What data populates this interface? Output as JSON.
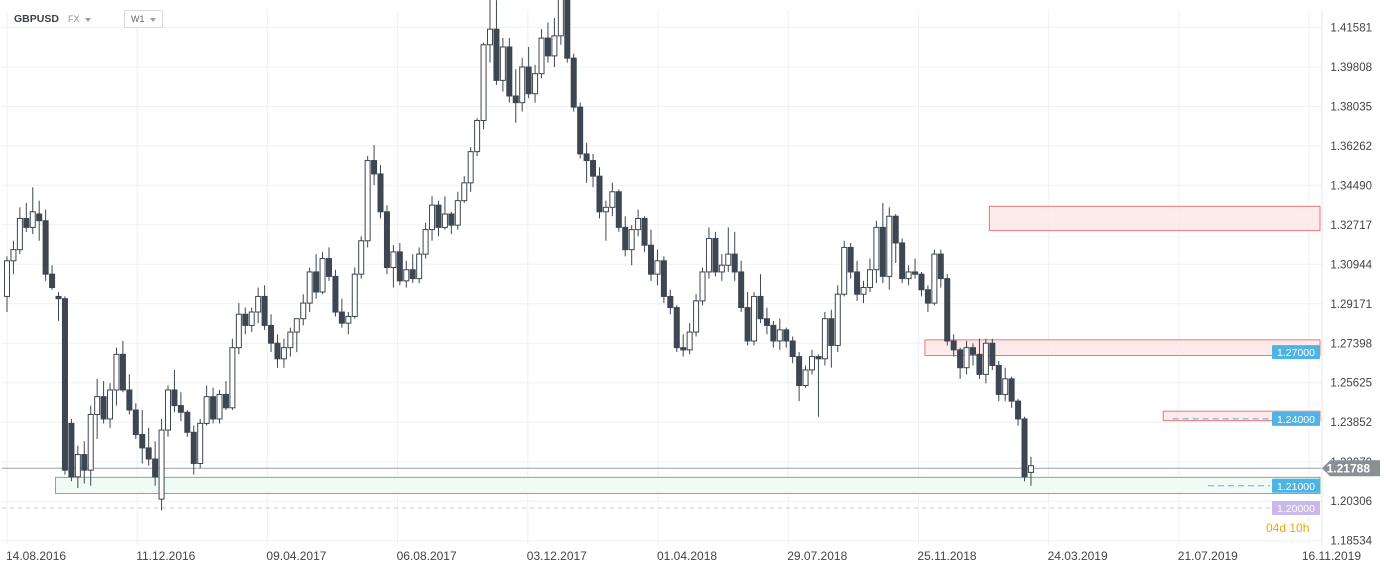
{
  "header": {
    "symbol": "GBPUSD",
    "market": "FX",
    "timeframe": "W1"
  },
  "colors": {
    "bear": "#3d4651",
    "bull": "#ffffff",
    "zone_red_fill": "#fde6e6",
    "zone_red_stroke": "#e25b5b",
    "zone_green_fill": "#eefaf4",
    "zone_green_stroke": "#3bb07a",
    "level_tag": "#4fb3e3",
    "current_tag": "#8a8f96",
    "purple_tag": "#c9b8ec",
    "countdown": "#f0a500"
  },
  "chart_data": {
    "type": "candlestick",
    "timeframe": "W1",
    "x_ticks": [
      "14.08.2016",
      "11.12.2016",
      "09.04.2017",
      "06.08.2017",
      "03.12.2017",
      "01.04.2018",
      "29.07.2018",
      "25.11.2018",
      "24.03.2019",
      "21.07.2019",
      "16.11.2019"
    ],
    "y_ticks": [
      1.41581,
      1.39808,
      1.38035,
      1.36262,
      1.3449,
      1.32717,
      1.30944,
      1.29171,
      1.27398,
      1.25625,
      1.23852,
      1.2207,
      1.20306,
      1.18534
    ],
    "ylim": [
      1.1834,
      1.4236
    ],
    "current_price": 1.21788,
    "current_price_label": "1.21788",
    "countdown_label": "04d 10h",
    "levels": [
      {
        "value": 1.27,
        "label": "1.27000"
      },
      {
        "value": 1.24,
        "label": "1.24000"
      },
      {
        "value": 1.21,
        "label": "1.21000"
      },
      {
        "value": 1.2,
        "label": "1.20000"
      }
    ],
    "zones": [
      {
        "from": 1.3245,
        "to": 1.3355,
        "kind": "resistance",
        "start_candle": 153
      },
      {
        "from": 1.2685,
        "to": 1.2755,
        "kind": "resistance",
        "start_candle": 143
      },
      {
        "from": 1.2392,
        "to": 1.2435,
        "kind": "resistance",
        "start_candle": 180
      },
      {
        "from": 1.2065,
        "to": 1.2138,
        "kind": "support",
        "start_candle": 8
      }
    ],
    "ohlc": [
      [
        1.295,
        1.313,
        1.288,
        1.311
      ],
      [
        1.311,
        1.32,
        1.305,
        1.316
      ],
      [
        1.316,
        1.335,
        1.314,
        1.33
      ],
      [
        1.33,
        1.337,
        1.324,
        1.326
      ],
      [
        1.326,
        1.344,
        1.323,
        1.333
      ],
      [
        1.332,
        1.338,
        1.32,
        1.329
      ],
      [
        1.329,
        1.334,
        1.302,
        1.305
      ],
      [
        1.305,
        1.309,
        1.298,
        1.299
      ],
      [
        1.295,
        1.297,
        1.284,
        1.294
      ],
      [
        1.294,
        1.295,
        1.215,
        1.217
      ],
      [
        1.238,
        1.24,
        1.212,
        1.214
      ],
      [
        1.214,
        1.228,
        1.209,
        1.224
      ],
      [
        1.224,
        1.23,
        1.211,
        1.217
      ],
      [
        1.217,
        1.246,
        1.21,
        1.242
      ],
      [
        1.242,
        1.258,
        1.231,
        1.25
      ],
      [
        1.25,
        1.257,
        1.238,
        1.24
      ],
      [
        1.24,
        1.256,
        1.236,
        1.253
      ],
      [
        1.253,
        1.272,
        1.246,
        1.269
      ],
      [
        1.269,
        1.275,
        1.252,
        1.253
      ],
      [
        1.253,
        1.26,
        1.242,
        1.244
      ],
      [
        1.244,
        1.247,
        1.231,
        1.233
      ],
      [
        1.233,
        1.244,
        1.22,
        1.227
      ],
      [
        1.227,
        1.236,
        1.219,
        1.222
      ],
      [
        1.222,
        1.23,
        1.21,
        1.214
      ],
      [
        1.204,
        1.24,
        1.199,
        1.235
      ],
      [
        1.235,
        1.255,
        1.232,
        1.253
      ],
      [
        1.253,
        1.262,
        1.243,
        1.246
      ],
      [
        1.246,
        1.252,
        1.239,
        1.243
      ],
      [
        1.243,
        1.244,
        1.232,
        1.234
      ],
      [
        1.234,
        1.237,
        1.215,
        1.22
      ],
      [
        1.22,
        1.24,
        1.218,
        1.238
      ],
      [
        1.238,
        1.255,
        1.237,
        1.25
      ],
      [
        1.25,
        1.254,
        1.238,
        1.24
      ],
      [
        1.24,
        1.253,
        1.238,
        1.251
      ],
      [
        1.251,
        1.257,
        1.244,
        1.245
      ],
      [
        1.245,
        1.276,
        1.244,
        1.272
      ],
      [
        1.272,
        1.292,
        1.269,
        1.287
      ],
      [
        1.287,
        1.29,
        1.278,
        1.282
      ],
      [
        1.282,
        1.29,
        1.279,
        1.288
      ],
      [
        1.288,
        1.299,
        1.283,
        1.295
      ],
      [
        1.295,
        1.3,
        1.28,
        1.282
      ],
      [
        1.282,
        1.287,
        1.27,
        1.274
      ],
      [
        1.274,
        1.278,
        1.263,
        1.267
      ],
      [
        1.267,
        1.276,
        1.263,
        1.272
      ],
      [
        1.272,
        1.281,
        1.268,
        1.279
      ],
      [
        1.279,
        1.284,
        1.27,
        1.285
      ],
      [
        1.285,
        1.296,
        1.282,
        1.292
      ],
      [
        1.292,
        1.308,
        1.288,
        1.306
      ],
      [
        1.306,
        1.314,
        1.294,
        1.297
      ],
      [
        1.297,
        1.315,
        1.296,
        1.312
      ],
      [
        1.312,
        1.317,
        1.302,
        1.304
      ],
      [
        1.304,
        1.307,
        1.286,
        1.288
      ],
      [
        1.288,
        1.294,
        1.281,
        1.283
      ],
      [
        1.283,
        1.288,
        1.278,
        1.286
      ],
      [
        1.286,
        1.308,
        1.285,
        1.305
      ],
      [
        1.305,
        1.322,
        1.303,
        1.32
      ],
      [
        1.32,
        1.358,
        1.317,
        1.356
      ],
      [
        1.356,
        1.363,
        1.345,
        1.35
      ],
      [
        1.35,
        1.354,
        1.33,
        1.333
      ],
      [
        1.333,
        1.336,
        1.305,
        1.308
      ],
      [
        1.308,
        1.318,
        1.299,
        1.315
      ],
      [
        1.315,
        1.319,
        1.3,
        1.302
      ],
      [
        1.302,
        1.311,
        1.299,
        1.307
      ],
      [
        1.307,
        1.314,
        1.301,
        1.303
      ],
      [
        1.303,
        1.317,
        1.301,
        1.314
      ],
      [
        1.314,
        1.328,
        1.312,
        1.325
      ],
      [
        1.325,
        1.34,
        1.32,
        1.336
      ],
      [
        1.336,
        1.338,
        1.322,
        1.326
      ],
      [
        1.326,
        1.34,
        1.325,
        1.332
      ],
      [
        1.332,
        1.333,
        1.323,
        1.327
      ],
      [
        1.327,
        1.342,
        1.325,
        1.338
      ],
      [
        1.338,
        1.349,
        1.337,
        1.346
      ],
      [
        1.346,
        1.362,
        1.342,
        1.36
      ],
      [
        1.36,
        1.375,
        1.358,
        1.374
      ],
      [
        1.374,
        1.409,
        1.37,
        1.408
      ],
      [
        1.408,
        1.432,
        1.4,
        1.415
      ],
      [
        1.415,
        1.428,
        1.39,
        1.392
      ],
      [
        1.392,
        1.411,
        1.387,
        1.407
      ],
      [
        1.407,
        1.411,
        1.382,
        1.385
      ],
      [
        1.385,
        1.397,
        1.373,
        1.382
      ],
      [
        1.382,
        1.402,
        1.378,
        1.398
      ],
      [
        1.398,
        1.407,
        1.384,
        1.386
      ],
      [
        1.386,
        1.399,
        1.382,
        1.395
      ],
      [
        1.395,
        1.415,
        1.393,
        1.411
      ],
      [
        1.411,
        1.418,
        1.4,
        1.403
      ],
      [
        1.403,
        1.42,
        1.398,
        1.412
      ],
      [
        1.412,
        1.433,
        1.408,
        1.429
      ],
      [
        1.429,
        1.431,
        1.4,
        1.402
      ],
      [
        1.402,
        1.404,
        1.378,
        1.38
      ],
      [
        1.38,
        1.382,
        1.357,
        1.359
      ],
      [
        1.359,
        1.364,
        1.346,
        1.356
      ],
      [
        1.356,
        1.359,
        1.344,
        1.349
      ],
      [
        1.349,
        1.353,
        1.33,
        1.333
      ],
      [
        1.333,
        1.338,
        1.32,
        1.335
      ],
      [
        1.335,
        1.346,
        1.331,
        1.342
      ],
      [
        1.342,
        1.343,
        1.324,
        1.326
      ],
      [
        1.326,
        1.331,
        1.313,
        1.316
      ],
      [
        1.316,
        1.327,
        1.309,
        1.325
      ],
      [
        1.325,
        1.334,
        1.322,
        1.33
      ],
      [
        1.33,
        1.331,
        1.315,
        1.318
      ],
      [
        1.318,
        1.325,
        1.302,
        1.305
      ],
      [
        1.305,
        1.316,
        1.3,
        1.311
      ],
      [
        1.311,
        1.313,
        1.292,
        1.295
      ],
      [
        1.295,
        1.298,
        1.287,
        1.29
      ],
      [
        1.29,
        1.291,
        1.27,
        1.272
      ],
      [
        1.272,
        1.278,
        1.268,
        1.271
      ],
      [
        1.271,
        1.283,
        1.269,
        1.279
      ],
      [
        1.279,
        1.296,
        1.277,
        1.293
      ],
      [
        1.293,
        1.308,
        1.291,
        1.306
      ],
      [
        1.306,
        1.326,
        1.303,
        1.321
      ],
      [
        1.321,
        1.324,
        1.304,
        1.306
      ],
      [
        1.306,
        1.314,
        1.302,
        1.309
      ],
      [
        1.309,
        1.326,
        1.306,
        1.314
      ],
      [
        1.314,
        1.324,
        1.302,
        1.306
      ],
      [
        1.306,
        1.311,
        1.288,
        1.29
      ],
      [
        1.29,
        1.297,
        1.273,
        1.275
      ],
      [
        1.275,
        1.297,
        1.273,
        1.295
      ],
      [
        1.295,
        1.305,
        1.283,
        1.285
      ],
      [
        1.285,
        1.29,
        1.278,
        1.282
      ],
      [
        1.282,
        1.284,
        1.272,
        1.275
      ],
      [
        1.275,
        1.285,
        1.271,
        1.28
      ],
      [
        1.28,
        1.281,
        1.272,
        1.275
      ],
      [
        1.275,
        1.277,
        1.265,
        1.268
      ],
      [
        1.268,
        1.27,
        1.248,
        1.255
      ],
      [
        1.255,
        1.264,
        1.254,
        1.262
      ],
      [
        1.262,
        1.271,
        1.26,
        1.268
      ],
      [
        1.268,
        1.269,
        1.241,
        1.267
      ],
      [
        1.267,
        1.288,
        1.264,
        1.285
      ],
      [
        1.285,
        1.289,
        1.263,
        1.273
      ],
      [
        1.273,
        1.3,
        1.27,
        1.296
      ],
      [
        1.296,
        1.32,
        1.295,
        1.317
      ],
      [
        1.317,
        1.319,
        1.303,
        1.306
      ],
      [
        1.306,
        1.311,
        1.293,
        1.296
      ],
      [
        1.296,
        1.302,
        1.292,
        1.299
      ],
      [
        1.299,
        1.312,
        1.297,
        1.307
      ],
      [
        1.307,
        1.329,
        1.301,
        1.326
      ],
      [
        1.326,
        1.337,
        1.301,
        1.304
      ],
      [
        1.304,
        1.335,
        1.298,
        1.331
      ],
      [
        1.331,
        1.332,
        1.31,
        1.319
      ],
      [
        1.319,
        1.321,
        1.301,
        1.303
      ],
      [
        1.303,
        1.309,
        1.3,
        1.306
      ],
      [
        1.306,
        1.312,
        1.303,
        1.305
      ],
      [
        1.305,
        1.306,
        1.295,
        1.298
      ],
      [
        1.298,
        1.3,
        1.288,
        1.292
      ],
      [
        1.292,
        1.316,
        1.291,
        1.314
      ],
      [
        1.314,
        1.316,
        1.299,
        1.303
      ],
      [
        1.303,
        1.305,
        1.273,
        1.275
      ],
      [
        1.275,
        1.278,
        1.268,
        1.271
      ],
      [
        1.271,
        1.272,
        1.258,
        1.263
      ],
      [
        1.263,
        1.275,
        1.26,
        1.272
      ],
      [
        1.272,
        1.274,
        1.264,
        1.269
      ],
      [
        1.269,
        1.276,
        1.258,
        1.26
      ],
      [
        1.26,
        1.276,
        1.256,
        1.274
      ],
      [
        1.274,
        1.276,
        1.262,
        1.264
      ],
      [
        1.264,
        1.266,
        1.248,
        1.251
      ],
      [
        1.251,
        1.263,
        1.248,
        1.258
      ],
      [
        1.258,
        1.259,
        1.245,
        1.248
      ],
      [
        1.248,
        1.249,
        1.237,
        1.24
      ],
      [
        1.24,
        1.241,
        1.212,
        1.214
      ],
      [
        1.216,
        1.223,
        1.21,
        1.219
      ]
    ]
  }
}
